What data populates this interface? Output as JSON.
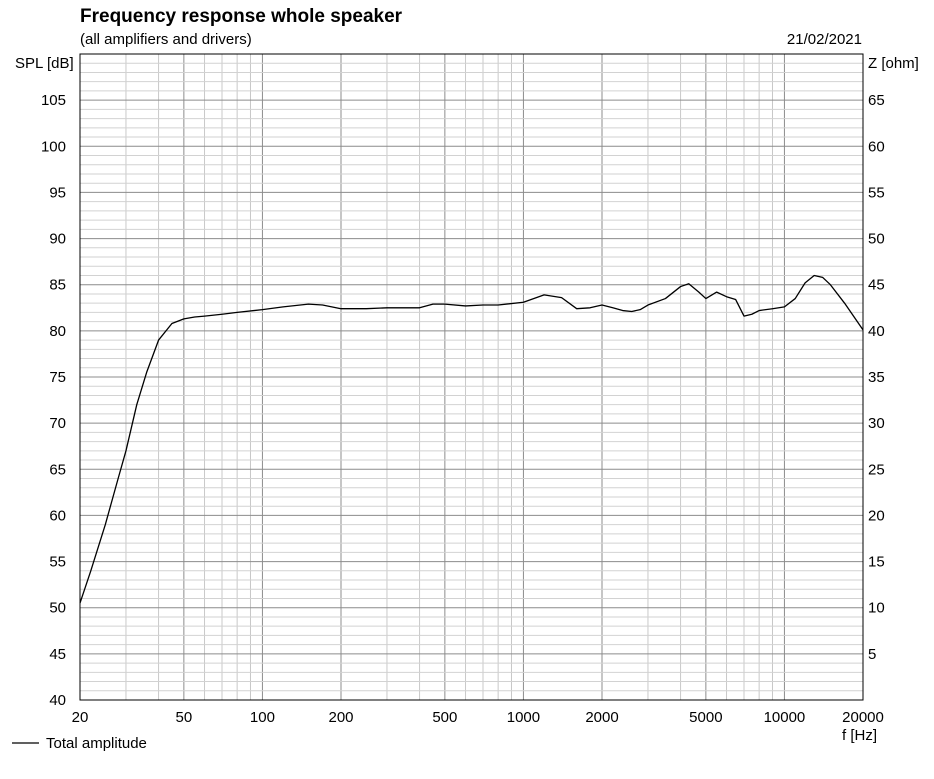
{
  "chart_data": {
    "type": "line",
    "title": "Frequency response whole speaker",
    "subtitle": "(all amplifiers and drivers)",
    "date": "21/02/2021",
    "ylabel_left": "SPL [dB]",
    "ylabel_right": "Z [ohm]",
    "xlabel": "f [Hz]",
    "x_scale": "log",
    "xlim": [
      20,
      20000
    ],
    "ylim": [
      40,
      110
    ],
    "y_right_lim": [
      0,
      70
    ],
    "x_tick_labels": [
      "20",
      "50",
      "100",
      "200",
      "500",
      "1000",
      "2000",
      "5000",
      "10000",
      "20000"
    ],
    "y_left_tick_labels": [
      "105",
      "100",
      "95",
      "90",
      "85",
      "80",
      "75",
      "70",
      "65",
      "60",
      "55",
      "50",
      "45",
      "40"
    ],
    "y_right_tick_labels": [
      "65",
      "60",
      "55",
      "50",
      "45",
      "40",
      "35",
      "30",
      "25",
      "20",
      "15",
      "10",
      "5"
    ],
    "grid": true,
    "legend_position": "bottom-left",
    "series": [
      {
        "name": "Total amplitude",
        "color": "#000000",
        "x": [
          20,
          22,
          25,
          28,
          30,
          33,
          36,
          40,
          45,
          50,
          55,
          60,
          70,
          80,
          100,
          120,
          150,
          170,
          200,
          250,
          300,
          400,
          450,
          500,
          600,
          700,
          800,
          1000,
          1200,
          1400,
          1600,
          1800,
          2000,
          2200,
          2400,
          2600,
          2800,
          3000,
          3500,
          4000,
          4300,
          4700,
          5000,
          5500,
          6000,
          6500,
          7000,
          7500,
          8000,
          9000,
          10000,
          11000,
          12000,
          13000,
          14000,
          15000,
          17000,
          20000
        ],
        "y": [
          50.5,
          54,
          59,
          64,
          67,
          72,
          75.5,
          79,
          80.8,
          81.3,
          81.5,
          81.6,
          81.8,
          82.0,
          82.3,
          82.6,
          82.9,
          82.8,
          82.4,
          82.4,
          82.5,
          82.5,
          82.9,
          82.9,
          82.7,
          82.8,
          82.8,
          83.1,
          83.9,
          83.6,
          82.4,
          82.5,
          82.8,
          82.5,
          82.2,
          82.1,
          82.3,
          82.8,
          83.5,
          84.8,
          85.1,
          84.2,
          83.5,
          84.2,
          83.7,
          83.4,
          81.6,
          81.8,
          82.2,
          82.4,
          82.6,
          83.5,
          85.2,
          86.0,
          85.8,
          85.0,
          83.0,
          80.1
        ]
      }
    ]
  }
}
